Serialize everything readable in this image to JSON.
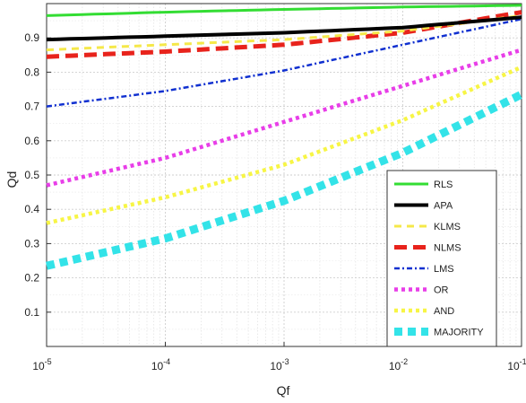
{
  "chart_data": {
    "type": "line",
    "title": "",
    "xlabel": "Qf",
    "ylabel": "Qd",
    "xscale": "log",
    "xlim": [
      1e-05,
      0.1
    ],
    "ylim": [
      0,
      1
    ],
    "grid": true,
    "legend_position": "bottom-right",
    "x_tick_labels": [
      {
        "value": 1e-05,
        "base": "10",
        "exp": "-5"
      },
      {
        "value": 0.0001,
        "base": "10",
        "exp": "-4"
      },
      {
        "value": 0.001,
        "base": "10",
        "exp": "-3"
      },
      {
        "value": 0.01,
        "base": "10",
        "exp": "-2"
      },
      {
        "value": 0.1,
        "base": "10",
        "exp": "-1"
      }
    ],
    "y_tick_labels": [
      "0.1",
      "0.2",
      "0.3",
      "0.4",
      "0.5",
      "0.6",
      "0.7",
      "0.8",
      "0.9"
    ],
    "y_tick_values": [
      0.1,
      0.2,
      0.3,
      0.4,
      0.5,
      0.6,
      0.7,
      0.8,
      0.9
    ],
    "x": [
      1e-05,
      0.0001,
      0.001,
      0.01,
      0.1
    ],
    "series": [
      {
        "name": "RLS",
        "color": "#33dd33",
        "style": "solid",
        "values": [
          0.965,
          0.975,
          0.983,
          0.99,
          0.995
        ]
      },
      {
        "name": "APA",
        "color": "#000000",
        "style": "solid",
        "values": [
          0.895,
          0.905,
          0.915,
          0.93,
          0.96
        ]
      },
      {
        "name": "KLMS",
        "color": "#f5e84a",
        "style": "dashed",
        "values": [
          0.865,
          0.88,
          0.895,
          0.92,
          0.965
        ]
      },
      {
        "name": "NLMS",
        "color": "#e8231c",
        "style": "dashed",
        "values": [
          0.845,
          0.86,
          0.88,
          0.915,
          0.975
        ]
      },
      {
        "name": "LMS",
        "color": "#1030d0",
        "style": "dashdot",
        "values": [
          0.7,
          0.745,
          0.805,
          0.88,
          0.955
        ]
      },
      {
        "name": "OR",
        "color": "#e83ee8",
        "style": "dotted",
        "values": [
          0.47,
          0.55,
          0.655,
          0.76,
          0.865
        ]
      },
      {
        "name": "AND",
        "color": "#f7f545",
        "style": "dotted",
        "values": [
          0.36,
          0.435,
          0.53,
          0.66,
          0.815
        ]
      },
      {
        "name": "MAJORITY",
        "color": "#33e3e8",
        "style": "dotted",
        "values": [
          0.235,
          0.315,
          0.425,
          0.565,
          0.735
        ]
      }
    ]
  }
}
